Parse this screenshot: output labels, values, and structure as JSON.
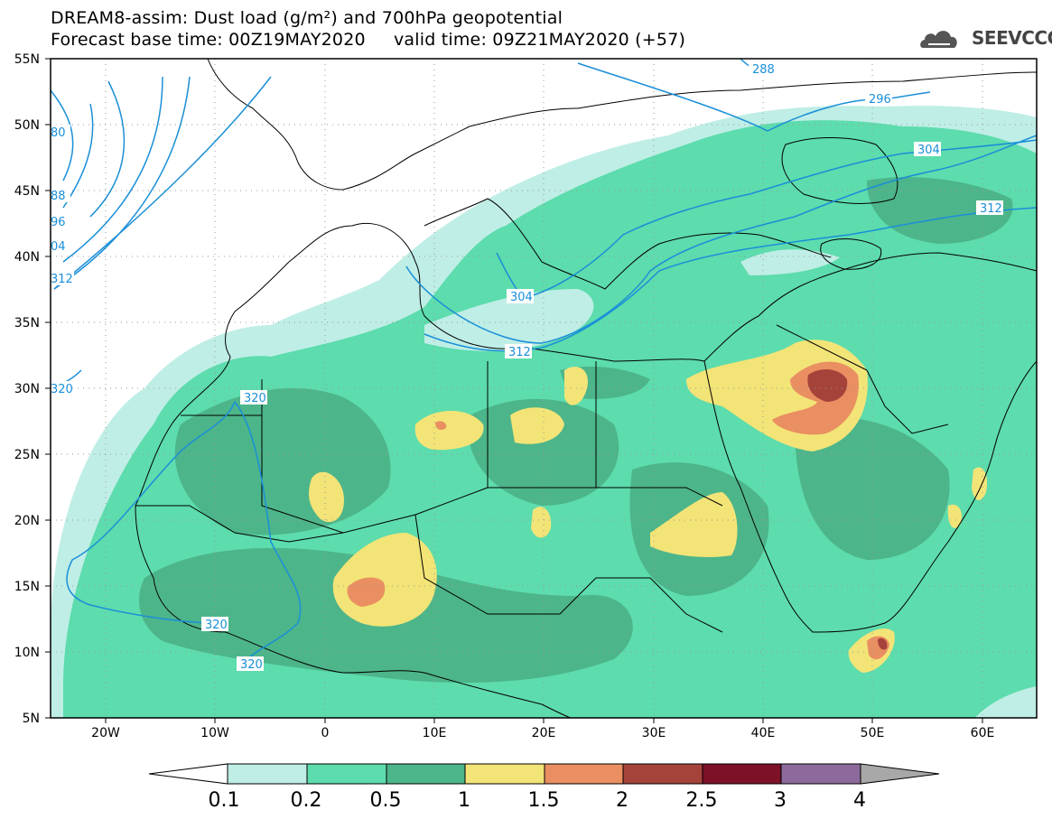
{
  "header": {
    "title_line1": "DREAM8-assim: Dust load (g/m²) and 700hPa geopotential",
    "title_line2": "Forecast base time: 00Z19MAY2020     valid time: 09Z21MAY2020 (+57)",
    "logo_text": "SEEVCCC",
    "logo_icon": "cloud-icon"
  },
  "map": {
    "projection": "lat-lon",
    "lon_range": [
      -25,
      65
    ],
    "lat_range": [
      5,
      55
    ],
    "lat_labels": [
      "55N",
      "50N",
      "45N",
      "40N",
      "35N",
      "30N",
      "25N",
      "20N",
      "15N",
      "10N",
      "5N"
    ],
    "lon_labels": [
      "20W",
      "10W",
      "0",
      "10E",
      "20E",
      "30E",
      "40E",
      "50E",
      "60E"
    ],
    "contour_color": "#1a8fd8",
    "contour_labels": [
      "288",
      "296",
      "304",
      "312",
      "304",
      "312",
      "320",
      "320",
      "320",
      "320",
      "80",
      "88",
      "96",
      "04",
      "312",
      "320"
    ]
  },
  "colorbar": {
    "ticks": [
      "0.1",
      "0.2",
      "0.5",
      "1",
      "1.5",
      "2",
      "2.5",
      "3",
      "4"
    ],
    "colors": [
      "#bfeee6",
      "#5ddcad",
      "#4db58a",
      "#f3e477",
      "#e98f61",
      "#a5433b",
      "#7d1128",
      "#8e6a9c",
      "#a8a8a8"
    ]
  }
}
